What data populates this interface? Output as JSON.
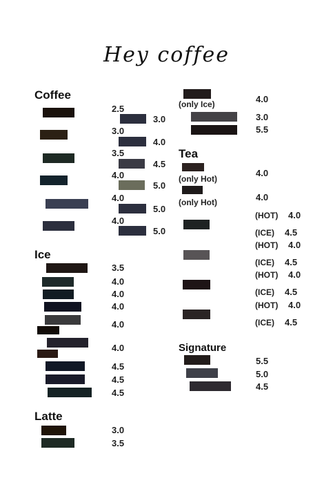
{
  "menu": {
    "title": "Hey coffee",
    "sections": {
      "coffee": "Coffee",
      "ice": "Ice",
      "latte": "Latte",
      "tea": "Tea",
      "signature": "Signature"
    },
    "colors": {
      "near_black": "#1a120c",
      "dark_brown": "#2b2014",
      "dark_green": "#1e2a24",
      "dark_teal": "#13232c",
      "slate_blue": "#3a3f52",
      "slate": "#2c2f3e",
      "olive": "#6b6d5c",
      "gray": "#585456"
    },
    "coffee_prices": [
      "2.5",
      "3.0",
      "3.5",
      "4.0",
      "4.0",
      "4.0"
    ],
    "coffee_extra_prices": [
      "3.0",
      "4.0",
      "4.5",
      "5.0",
      "5.0",
      "5.0"
    ],
    "ice_prices": [
      "3.5",
      "4.0",
      "4.0",
      "4.0",
      "4.0",
      "4.0",
      "4.5",
      "4.5",
      "4.5"
    ],
    "latte_prices": [
      "3.0",
      "3.5"
    ],
    "top_right": {
      "note": "(only Ice)",
      "prices": [
        "4.0",
        "3.0",
        "5.5"
      ]
    },
    "tea": {
      "notes": [
        "(only Hot)",
        "(only Hot)"
      ],
      "prices": [
        "4.0",
        "4.0"
      ],
      "hot_label": "(HOT)",
      "ice_label": "(ICE)",
      "hot_prices": [
        "4.0",
        "4.0",
        "4.0",
        "4.0"
      ],
      "ice_prices": [
        "4.5",
        "4.5",
        "4.5",
        "4.5"
      ]
    },
    "signature_prices": [
      "5.5",
      "5.0",
      "4.5"
    ]
  }
}
